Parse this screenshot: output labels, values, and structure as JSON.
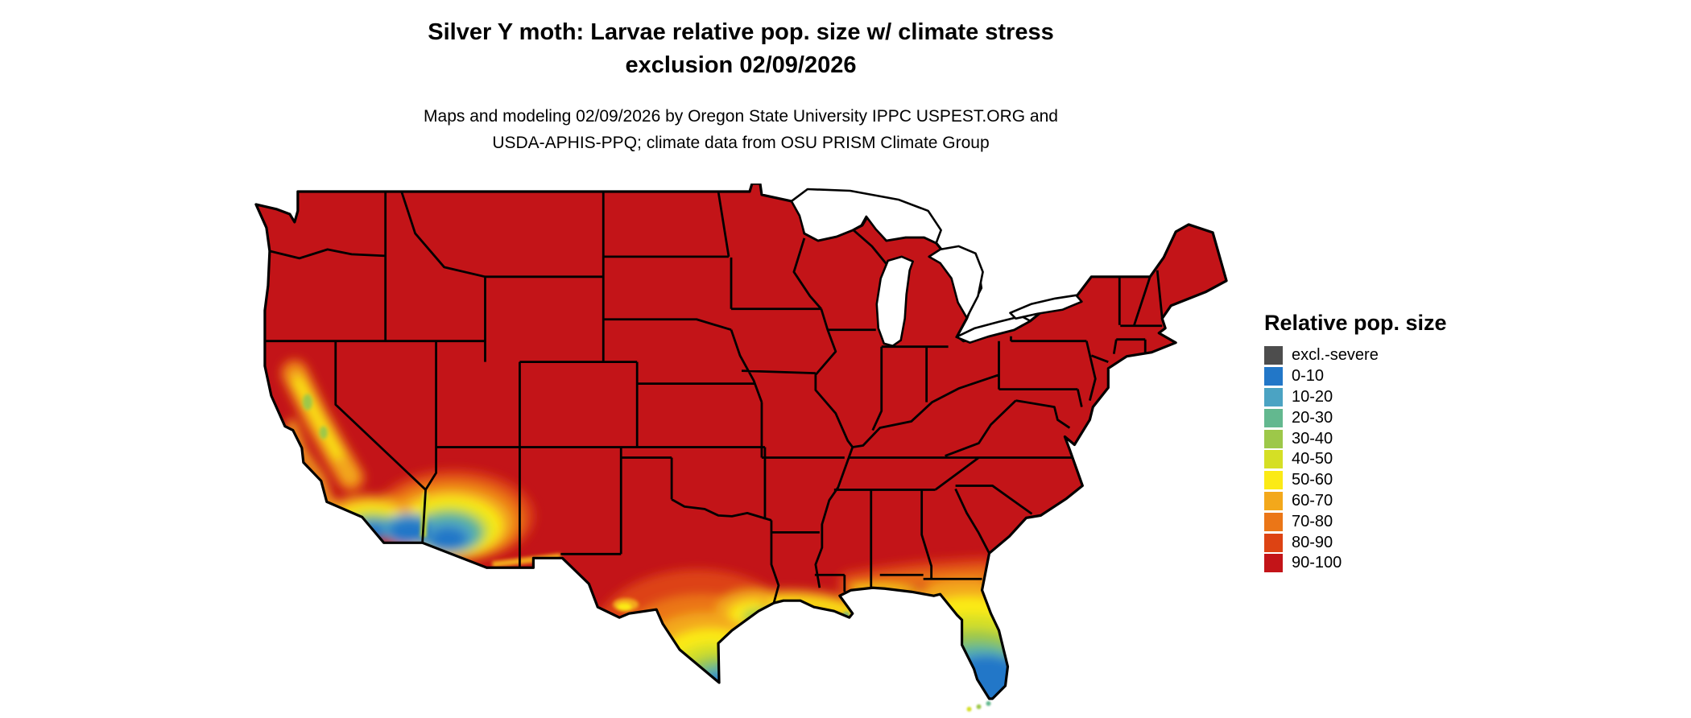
{
  "header": {
    "title_line1": "Silver Y moth: Larvae relative pop. size w/ climate stress",
    "title_line2": "exclusion 02/09/2026",
    "subtitle_line1": "Maps and modeling 02/09/2026 by Oregon State University IPPC USPEST.ORG and",
    "subtitle_line2": "USDA-APHIS-PPQ; climate data from OSU PRISM Climate Group"
  },
  "map": {
    "region": "Continental United States",
    "kind": "raster choropleth of relative population size",
    "dominant_bin": "90-100",
    "low_value_areas": "southern Texas, Gulf Coast, Florida peninsula, southern California, southwestern Arizona"
  },
  "legend": {
    "title": "Relative pop. size",
    "entries": [
      {
        "key": "excl",
        "label": "excl.-severe",
        "color": "#4D4D4D"
      },
      {
        "key": "b0",
        "label": "0-10",
        "color": "#2277C8"
      },
      {
        "key": "b10",
        "label": "10-20",
        "color": "#4BA3C3"
      },
      {
        "key": "b20",
        "label": "20-30",
        "color": "#63B88F"
      },
      {
        "key": "b30",
        "label": "30-40",
        "color": "#9DC849"
      },
      {
        "key": "b40",
        "label": "40-50",
        "color": "#D5DF25"
      },
      {
        "key": "b50",
        "label": "50-60",
        "color": "#FBEA16"
      },
      {
        "key": "b60",
        "label": "60-70",
        "color": "#F3A81B"
      },
      {
        "key": "b70",
        "label": "70-80",
        "color": "#EB7617"
      },
      {
        "key": "b80",
        "label": "80-90",
        "color": "#DD4313"
      },
      {
        "key": "b90",
        "label": "90-100",
        "color": "#C31418"
      }
    ]
  }
}
